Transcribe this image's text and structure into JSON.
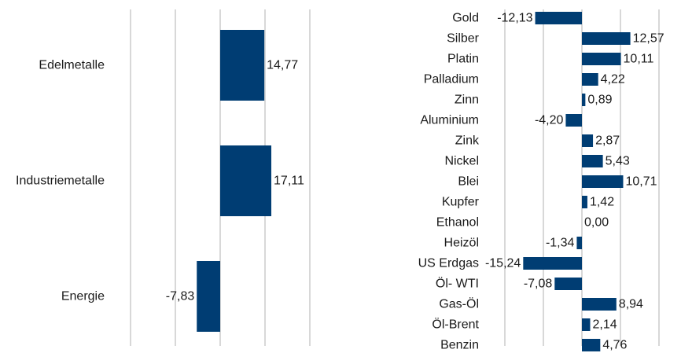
{
  "colors": {
    "bar": "#003d73",
    "grid": "#c8c8c8",
    "text": "#1a1a1a"
  },
  "chart_data": [
    {
      "type": "bar",
      "orientation": "horizontal",
      "categories": [
        "Edelmetalle",
        "Industriemetalle",
        "Energie"
      ],
      "values": [
        14.77,
        17.11,
        -7.83
      ],
      "value_labels": [
        "14,77",
        "17,11",
        "-7,83"
      ],
      "xlim": [
        -30,
        30
      ],
      "grid": true,
      "legend": "none"
    },
    {
      "type": "bar",
      "orientation": "horizontal",
      "categories": [
        "Gold",
        "Silber",
        "Platin",
        "Palladium",
        "Zinn",
        "Aluminium",
        "Zink",
        "Nickel",
        "Blei",
        "Kupfer",
        "Ethanol",
        "Heizöl",
        "US Erdgas",
        "Öl- WTI",
        "Gas-Öl",
        "Öl-Brent",
        "Benzin"
      ],
      "values": [
        -12.13,
        12.57,
        10.11,
        4.22,
        0.89,
        -4.2,
        2.87,
        5.43,
        10.71,
        1.42,
        0.0,
        -1.34,
        -15.24,
        -7.08,
        8.94,
        2.14,
        4.76
      ],
      "value_labels": [
        "-12,13",
        "12,57",
        "10,11",
        "4,22",
        "0,89",
        "-4,20",
        "2,87",
        "5,43",
        "10,71",
        "1,42",
        "0,00",
        "-1,34",
        "-15,24",
        "-7,08",
        "8,94",
        "2,14",
        "4,76"
      ],
      "xlim": [
        -20,
        20
      ],
      "grid": true,
      "legend": "none"
    }
  ]
}
